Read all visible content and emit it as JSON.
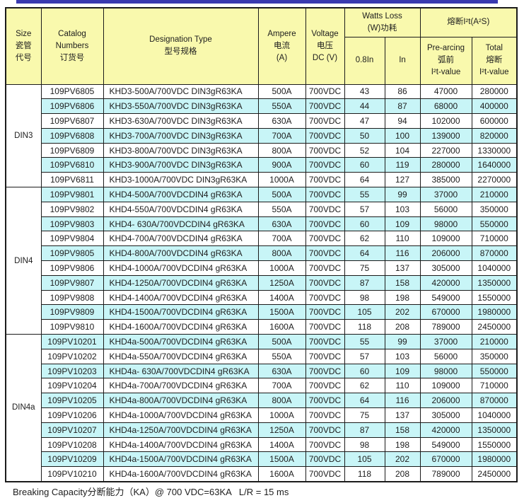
{
  "colors": {
    "top_rule": "#3a3ab0",
    "header_bg": "#f9f9ad",
    "stripe_bg": "#c8f5f7",
    "border": "#1b1b1b",
    "text": "#1d1d1d"
  },
  "table": {
    "header": {
      "size_lines": [
        "Size",
        "瓷管",
        "代号"
      ],
      "catalog_lines": [
        "Catalog",
        "Numbers",
        "订货号"
      ],
      "designation_lines": [
        "Designation Type",
        "型号规格"
      ],
      "ampere_lines": [
        "Ampere",
        "电流",
        "(A)"
      ],
      "voltage_lines": [
        "Voltage",
        "电压",
        "DC (V)"
      ],
      "watts_group_lines": [
        "Watts Loss",
        "(W)功耗"
      ],
      "watts_sub": [
        "0.8In",
        "In"
      ],
      "i2t_group": "熔断I²t(A²S)",
      "prearcing_lines": [
        "Pre-arcing",
        "弧前",
        "I²t-value"
      ],
      "total_lines": [
        "Total",
        "熔断",
        "I²t-value"
      ]
    },
    "sections": [
      {
        "size_label": "DIN3",
        "rows": [
          {
            "catalog": "109PV6805",
            "designation": "KHD3-500A/700VDC DIN3gR63KA",
            "ampere": "500A",
            "voltage": "700VDC",
            "watts_08in": "43",
            "watts_in": "86",
            "prearcing_i2t": "47000",
            "total_i2t": "280000"
          },
          {
            "catalog": "109PV6806",
            "designation": "KHD3-550A/700VDC DIN3gR63KA",
            "ampere": "550A",
            "voltage": "700VDC",
            "watts_08in": "44",
            "watts_in": "87",
            "prearcing_i2t": "68000",
            "total_i2t": "400000"
          },
          {
            "catalog": "109PV6807",
            "designation": "KHD3-630A/700VDC DIN3gR63KA",
            "ampere": "630A",
            "voltage": "700VDC",
            "watts_08in": "47",
            "watts_in": "94",
            "prearcing_i2t": "102000",
            "total_i2t": "600000"
          },
          {
            "catalog": "109PV6808",
            "designation": "KHD3-700A/700VDC DIN3gR63KA",
            "ampere": "700A",
            "voltage": "700VDC",
            "watts_08in": "50",
            "watts_in": "100",
            "prearcing_i2t": "139000",
            "total_i2t": "820000"
          },
          {
            "catalog": "109PV6809",
            "designation": "KHD3-800A/700VDC DIN3gR63KA",
            "ampere": "800A",
            "voltage": "700VDC",
            "watts_08in": "52",
            "watts_in": "104",
            "prearcing_i2t": "227000",
            "total_i2t": "1330000"
          },
          {
            "catalog": "109PV6810",
            "designation": "KHD3-900A/700VDC DIN3gR63KA",
            "ampere": "900A",
            "voltage": "700VDC",
            "watts_08in": "60",
            "watts_in": "119",
            "prearcing_i2t": "280000",
            "total_i2t": "1640000"
          },
          {
            "catalog": "109PV6811",
            "designation": "KHD3-1000A/700VDC DIN3gR63KA",
            "ampere": "1000A",
            "voltage": "700VDC",
            "watts_08in": "64",
            "watts_in": "127",
            "prearcing_i2t": "385000",
            "total_i2t": "2270000"
          }
        ]
      },
      {
        "size_label": "DIN4",
        "rows": [
          {
            "catalog": "109PV9801",
            "designation": "KHD4-500A/700VDCDIN4 gR63KA",
            "ampere": "500A",
            "voltage": "700VDC",
            "watts_08in": "55",
            "watts_in": "99",
            "prearcing_i2t": "37000",
            "total_i2t": "210000"
          },
          {
            "catalog": "109PV9802",
            "designation": "KHD4-550A/700VDCDIN4 gR63KA",
            "ampere": "550A",
            "voltage": "700VDC",
            "watts_08in": "57",
            "watts_in": "103",
            "prearcing_i2t": "56000",
            "total_i2t": "350000"
          },
          {
            "catalog": "109PV9803",
            "designation": "KHD4- 630A/700VDCDIN4 gR63KA",
            "ampere": "630A",
            "voltage": "700VDC",
            "watts_08in": "60",
            "watts_in": "109",
            "prearcing_i2t": "98000",
            "total_i2t": "550000"
          },
          {
            "catalog": "109PV9804",
            "designation": "KHD4-700A/700VDCDIN4 gR63KA",
            "ampere": "700A",
            "voltage": "700VDC",
            "watts_08in": "62",
            "watts_in": "110",
            "prearcing_i2t": "109000",
            "total_i2t": "710000"
          },
          {
            "catalog": "109PV9805",
            "designation": "KHD4-800A/700VDCDIN4 gR63KA",
            "ampere": "800A",
            "voltage": "700VDC",
            "watts_08in": "64",
            "watts_in": "116",
            "prearcing_i2t": "206000",
            "total_i2t": "870000"
          },
          {
            "catalog": "109PV9806",
            "designation": "KHD4-1000A/700VDCDIN4 gR63KA",
            "ampere": "1000A",
            "voltage": "700VDC",
            "watts_08in": "75",
            "watts_in": "137",
            "prearcing_i2t": "305000",
            "total_i2t": "1040000"
          },
          {
            "catalog": "109PV9807",
            "designation": "KHD4-1250A/700VDCDIN4 gR63KA",
            "ampere": "1250A",
            "voltage": "700VDC",
            "watts_08in": "87",
            "watts_in": "158",
            "prearcing_i2t": "420000",
            "total_i2t": "1350000"
          },
          {
            "catalog": "109PV9808",
            "designation": "KHD4-1400A/700VDCDIN4 gR63KA",
            "ampere": "1400A",
            "voltage": "700VDC",
            "watts_08in": "98",
            "watts_in": "198",
            "prearcing_i2t": "549000",
            "total_i2t": "1550000"
          },
          {
            "catalog": "109PV9809",
            "designation": "KHD4-1500A/700VDCDIN4 gR63KA",
            "ampere": "1500A",
            "voltage": "700VDC",
            "watts_08in": "105",
            "watts_in": "202",
            "prearcing_i2t": "670000",
            "total_i2t": "1980000"
          },
          {
            "catalog": "109PV9810",
            "designation": "KHD4-1600A/700VDCDIN4 gR63KA",
            "ampere": "1600A",
            "voltage": "700VDC",
            "watts_08in": "118",
            "watts_in": "208",
            "prearcing_i2t": "789000",
            "total_i2t": "2450000"
          }
        ]
      },
      {
        "size_label": "DIN4a",
        "rows": [
          {
            "catalog": "109PV10201",
            "designation": "KHD4a-500A/700VDCDIN4 gR63KA",
            "ampere": "500A",
            "voltage": "700VDC",
            "watts_08in": "55",
            "watts_in": "99",
            "prearcing_i2t": "37000",
            "total_i2t": "210000"
          },
          {
            "catalog": "109PV10202",
            "designation": "KHD4a-550A/700VDCDIN4 gR63KA",
            "ampere": "550A",
            "voltage": "700VDC",
            "watts_08in": "57",
            "watts_in": "103",
            "prearcing_i2t": "56000",
            "total_i2t": "350000"
          },
          {
            "catalog": "109PV10203",
            "designation": "KHD4a- 630A/700VDCDIN4 gR63KA",
            "ampere": "630A",
            "voltage": "700VDC",
            "watts_08in": "60",
            "watts_in": "109",
            "prearcing_i2t": "98000",
            "total_i2t": "550000"
          },
          {
            "catalog": "109PV10204",
            "designation": "KHD4a-700A/700VDCDIN4 gR63KA",
            "ampere": "700A",
            "voltage": "700VDC",
            "watts_08in": "62",
            "watts_in": "110",
            "prearcing_i2t": "109000",
            "total_i2t": "710000"
          },
          {
            "catalog": "109PV10205",
            "designation": "KHD4a-800A/700VDCDIN4 gR63KA",
            "ampere": "800A",
            "voltage": "700VDC",
            "watts_08in": "64",
            "watts_in": "116",
            "prearcing_i2t": "206000",
            "total_i2t": "870000"
          },
          {
            "catalog": "109PV10206",
            "designation": "KHD4a-1000A/700VDCDIN4 gR63KA",
            "ampere": "1000A",
            "voltage": "700VDC",
            "watts_08in": "75",
            "watts_in": "137",
            "prearcing_i2t": "305000",
            "total_i2t": "1040000"
          },
          {
            "catalog": "109PV10207",
            "designation": "KHD4a-1250A/700VDCDIN4 gR63KA",
            "ampere": "1250A",
            "voltage": "700VDC",
            "watts_08in": "87",
            "watts_in": "158",
            "prearcing_i2t": "420000",
            "total_i2t": "1350000"
          },
          {
            "catalog": "109PV10208",
            "designation": "KHD4a-1400A/700VDCDIN4 gR63KA",
            "ampere": "1400A",
            "voltage": "700VDC",
            "watts_08in": "98",
            "watts_in": "198",
            "prearcing_i2t": "549000",
            "total_i2t": "1550000"
          },
          {
            "catalog": "109PV10209",
            "designation": "KHD4a-1500A/700VDCDIN4 gR63KA",
            "ampere": "1500A",
            "voltage": "700VDC",
            "watts_08in": "105",
            "watts_in": "202",
            "prearcing_i2t": "670000",
            "total_i2t": "1980000"
          },
          {
            "catalog": "109PV10210",
            "designation": "KHD4a-1600A/700VDCDIN4 gR63KA",
            "ampere": "1600A",
            "voltage": "700VDC",
            "watts_08in": "118",
            "watts_in": "208",
            "prearcing_i2t": "789000",
            "total_i2t": "2450000"
          }
        ]
      }
    ]
  },
  "footer": {
    "note": "Breaking Capacity分断能力（KA）@ 700 VDC=63KA   L/R = 15 ms"
  }
}
